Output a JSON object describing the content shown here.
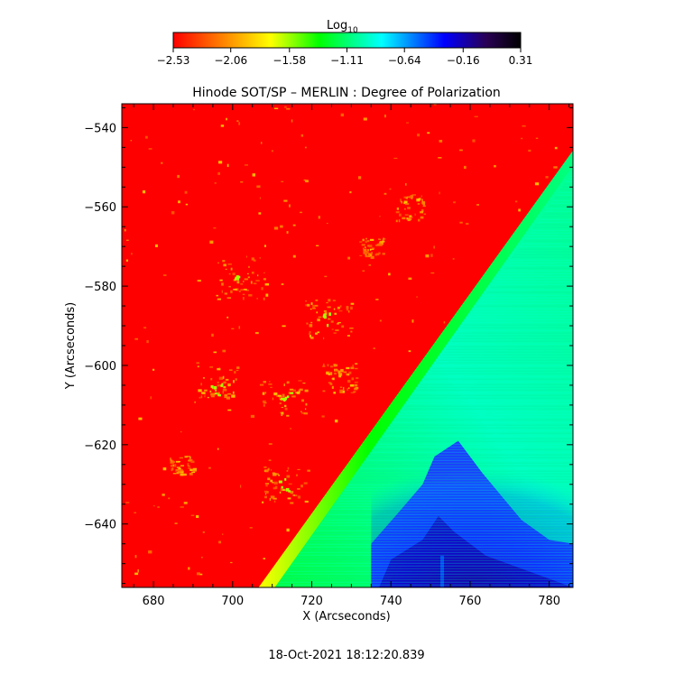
{
  "chart_data": {
    "type": "heatmap",
    "title": "Hinode SOT/SP – MERLIN : Degree of Polarization",
    "xlabel": "X (Arcseconds)",
    "ylabel": "Y (Arcseconds)",
    "xlim": [
      672,
      786
    ],
    "ylim": [
      -656,
      -534
    ],
    "x_ticks": [
      680,
      700,
      720,
      740,
      760,
      780
    ],
    "y_ticks": [
      -540,
      -560,
      -580,
      -600,
      -620,
      -640
    ],
    "x_tick_labels": [
      "680",
      "700",
      "720",
      "740",
      "760",
      "780"
    ],
    "y_tick_labels": [
      "−540",
      "−560",
      "−580",
      "−600",
      "−620",
      "−640"
    ],
    "colorbar": {
      "label_main": "Log",
      "label_sub": "10",
      "range": [
        -2.53,
        0.31
      ],
      "ticks": [
        -2.53,
        -2.06,
        -1.58,
        -1.11,
        -0.64,
        -0.16,
        0.31
      ],
      "tick_labels": [
        "−2.53",
        "−2.06",
        "−1.58",
        "−1.11",
        "−0.64",
        "−0.16",
        "0.31"
      ],
      "colors": [
        "#ff0000",
        "#ff8000",
        "#ffff00",
        "#00ff00",
        "#00ffff",
        "#0000ff",
        "#2a0055",
        "#000000"
      ]
    },
    "regions": {
      "limb_boundary": [
        [
          707,
          -656
        ],
        [
          786,
          -546
        ]
      ],
      "disk_value": -2.5,
      "limb_band_value": -1.3,
      "offlimb_value": -0.9,
      "prominence_value": -0.25
    },
    "timestamp": "18-Oct-2021 18:12:20.839"
  }
}
